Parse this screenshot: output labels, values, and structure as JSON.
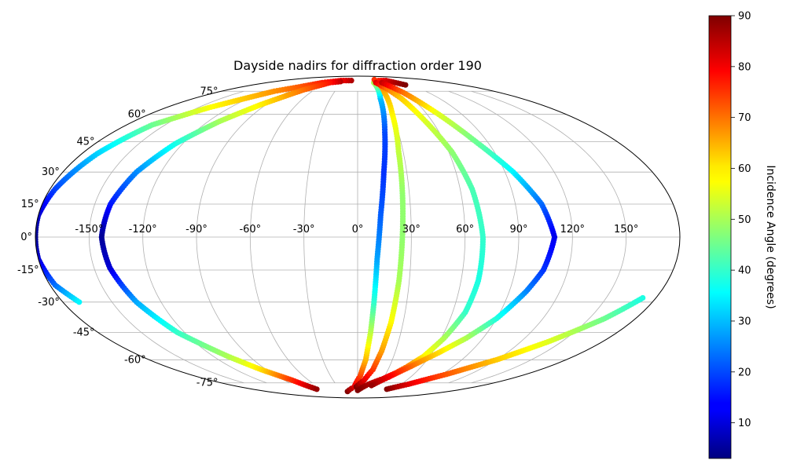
{
  "chart_data": {
    "type": "scatter",
    "projection": "mollweide",
    "title": "Dayside nadirs for diffraction order 190",
    "xlabel": "",
    "ylabel": "",
    "grid": true,
    "lon_ticks": [
      -150,
      -120,
      -90,
      -60,
      -30,
      0,
      30,
      60,
      90,
      120,
      150
    ],
    "lon_tick_labels": [
      "-150°",
      "-120°",
      "-90°",
      "-60°",
      "-30°",
      "0°",
      "30°",
      "60°",
      "90°",
      "120°",
      "150°"
    ],
    "lat_ticks": [
      75,
      60,
      45,
      30,
      15,
      0,
      -15,
      -30,
      -45,
      -60,
      -75
    ],
    "lat_tick_labels": [
      "75°",
      "60°",
      "45°",
      "30°",
      "15°",
      "0°",
      "-15°",
      "-30°",
      "-45°",
      "-60°",
      "-75°"
    ],
    "xlim": [
      -180,
      180
    ],
    "ylim": [
      -90,
      90
    ],
    "colormap": "jet",
    "colorbar": {
      "label": "Incidence Angle (degrees)",
      "range": [
        3,
        90
      ],
      "ticks": [
        10,
        20,
        30,
        40,
        50,
        60,
        70,
        80,
        90
      ],
      "tick_labels": [
        "10",
        "20",
        "30",
        "40",
        "50",
        "60",
        "70",
        "80",
        "90"
      ],
      "placement": "right"
    },
    "tracks": [
      {
        "points": [
          [
            -15,
            84,
            86
          ],
          [
            -40,
            84,
            80
          ],
          [
            -70,
            82,
            77
          ],
          [
            -110,
            75,
            67
          ],
          [
            -140,
            64,
            57
          ],
          [
            -160,
            54,
            45
          ],
          [
            -170,
            39,
            32
          ],
          [
            -177,
            22,
            20
          ],
          [
            -180,
            10,
            10
          ],
          [
            -180,
            0,
            4
          ],
          [
            -180,
            -10,
            10
          ],
          [
            -177,
            -22,
            23
          ],
          [
            -170,
            -30,
            35
          ]
        ]
      },
      {
        "points": [
          [
            -37,
            83,
            85
          ],
          [
            -55,
            82,
            78
          ],
          [
            -75,
            76,
            70
          ],
          [
            -95,
            66,
            59
          ],
          [
            -111,
            56,
            50
          ],
          [
            -125,
            44,
            38
          ],
          [
            -135,
            30,
            26
          ],
          [
            -141,
            15,
            16
          ],
          [
            -143,
            0,
            5
          ],
          [
            -141,
            -14,
            10
          ],
          [
            -135,
            -30,
            28
          ],
          [
            -125,
            -45,
            40
          ],
          [
            -108,
            -58,
            50
          ],
          [
            -95,
            -66,
            60
          ],
          [
            -80,
            -73,
            75
          ],
          [
            -70,
            -80,
            88
          ]
        ]
      },
      {
        "points": [
          [
            -20,
            -82,
            90
          ],
          [
            -5,
            -78,
            82
          ],
          [
            3,
            -70,
            74
          ],
          [
            7,
            -60,
            64
          ],
          [
            9,
            -45,
            52
          ],
          [
            10,
            -30,
            40
          ],
          [
            11,
            -10,
            28
          ],
          [
            13,
            10,
            22
          ],
          [
            16,
            30,
            18
          ],
          [
            20,
            50,
            20
          ],
          [
            25,
            70,
            30
          ],
          [
            32,
            82,
            50
          ],
          [
            45,
            85,
            75
          ]
        ]
      },
      {
        "points": [
          [
            -2,
            -78,
            90
          ],
          [
            8,
            -73,
            82
          ],
          [
            15,
            -66,
            75
          ],
          [
            19,
            -55,
            66
          ],
          [
            22,
            -40,
            58
          ],
          [
            24,
            -20,
            50
          ],
          [
            25,
            0,
            48
          ],
          [
            26,
            20,
            48
          ],
          [
            27,
            40,
            52
          ],
          [
            30,
            60,
            58
          ],
          [
            34,
            74,
            64
          ],
          [
            40,
            82,
            70
          ],
          [
            50,
            84,
            76
          ],
          [
            68,
            84,
            82
          ],
          [
            82,
            80,
            90
          ]
        ]
      },
      {
        "points": [
          [
            36,
            82,
            82
          ],
          [
            42,
            77,
            70
          ],
          [
            48,
            70,
            62
          ],
          [
            55,
            55,
            54
          ],
          [
            62,
            40,
            48
          ],
          [
            67,
            22,
            42
          ],
          [
            70,
            0,
            40
          ],
          [
            70,
            -20,
            38
          ],
          [
            68,
            -35,
            40
          ],
          [
            62,
            -48,
            50
          ],
          [
            55,
            -58,
            58
          ],
          [
            47,
            -64,
            68
          ],
          [
            40,
            -68,
            75
          ],
          [
            30,
            -72,
            82
          ],
          [
            15,
            -76,
            86
          ],
          [
            0,
            -81,
            90
          ]
        ]
      },
      {
        "points": [
          [
            48,
            82,
            84
          ],
          [
            58,
            74,
            70
          ],
          [
            70,
            60,
            55
          ],
          [
            82,
            45,
            45
          ],
          [
            95,
            30,
            35
          ],
          [
            105,
            15,
            23
          ],
          [
            110,
            0,
            12
          ],
          [
            106,
            -15,
            18
          ],
          [
            100,
            -25,
            25
          ],
          [
            90,
            -38,
            38
          ],
          [
            78,
            -48,
            50
          ],
          [
            65,
            -56,
            60
          ],
          [
            50,
            -64,
            70
          ],
          [
            35,
            -71,
            80
          ],
          [
            20,
            -77,
            88
          ]
        ]
      },
      {
        "points": [
          [
            50,
            -80,
            90
          ],
          [
            70,
            -76,
            82
          ],
          [
            95,
            -69,
            72
          ],
          [
            120,
            -60,
            62
          ],
          [
            140,
            -50,
            55
          ],
          [
            160,
            -38,
            45
          ],
          [
            172,
            -28,
            38
          ]
        ]
      }
    ]
  }
}
